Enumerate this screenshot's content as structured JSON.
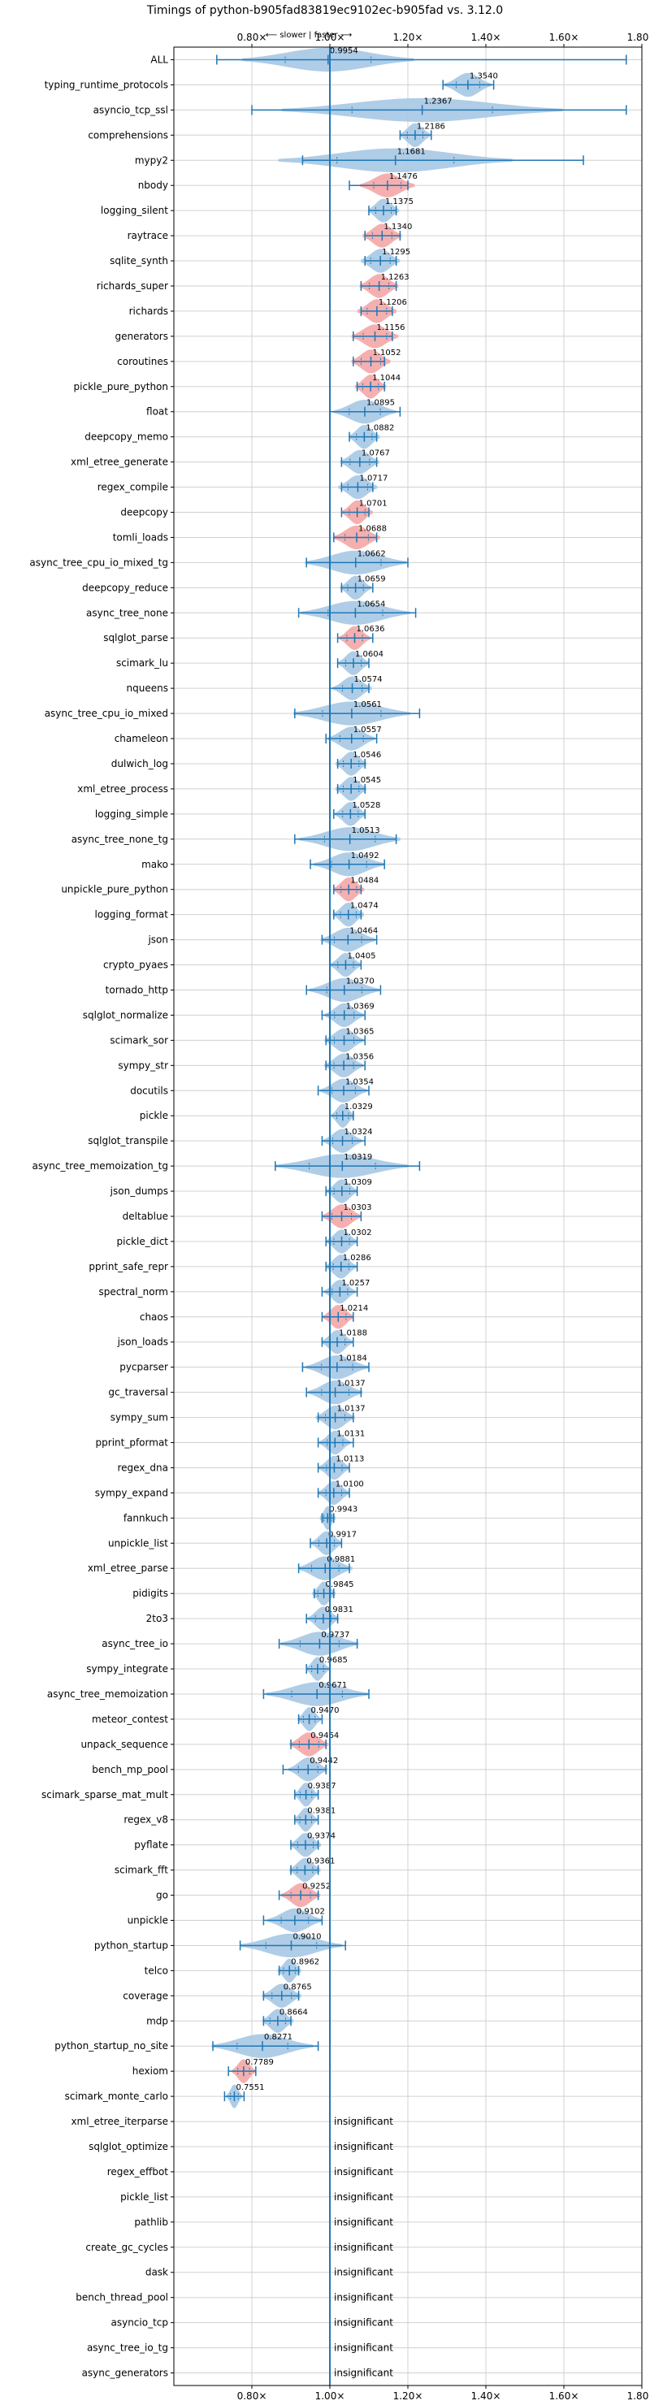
{
  "chart_data": {
    "type": "violin",
    "title": "Timings of python-b905fad83819ec9102ec-b905fad vs. 3.12.0",
    "subtitle": "⟵ slower | faster ⟶",
    "xlim": [
      0.6,
      1.8
    ],
    "xticks": [
      0.8,
      1.0,
      1.2,
      1.4,
      1.6,
      1.8
    ],
    "xtick_labels": [
      "0.80×",
      "1.00×",
      "1.20×",
      "1.40×",
      "1.60×",
      "1.80×"
    ],
    "reference_line": 1.0,
    "grid": true,
    "colors": {
      "default": "#1f77b4",
      "violin": "#a6c8e4",
      "slower": "#f4a6a6"
    },
    "insignificant_label": "insignificant",
    "benchmarks": [
      {
        "name": "ALL",
        "value": 0.9954,
        "label": "0.9954",
        "lo": 0.71,
        "hi": 1.76,
        "half": 0.22,
        "color": "default"
      },
      {
        "name": "typing_runtime_protocols",
        "value": 1.354,
        "label": "1.3540",
        "lo": 1.29,
        "hi": 1.42,
        "half": 0.06,
        "color": "default"
      },
      {
        "name": "asyncio_tcp_ssl",
        "value": 1.2367,
        "label": "1.2367",
        "lo": 0.8,
        "hi": 1.76,
        "half": 0.36,
        "color": "default"
      },
      {
        "name": "comprehensions",
        "value": 1.2186,
        "label": "1.2186",
        "lo": 1.18,
        "hi": 1.26,
        "half": 0.04,
        "color": "default"
      },
      {
        "name": "mypy2",
        "value": 1.1681,
        "label": "1.1681",
        "lo": 0.93,
        "hi": 1.65,
        "half": 0.3,
        "color": "default"
      },
      {
        "name": "nbody",
        "value": 1.1476,
        "label": "1.1476",
        "lo": 1.05,
        "hi": 1.2,
        "half": 0.07,
        "color": "slower"
      },
      {
        "name": "logging_silent",
        "value": 1.1375,
        "label": "1.1375",
        "lo": 1.1,
        "hi": 1.17,
        "half": 0.04,
        "color": "default"
      },
      {
        "name": "raytrace",
        "value": 1.134,
        "label": "1.1340",
        "lo": 1.09,
        "hi": 1.18,
        "half": 0.05,
        "color": "slower"
      },
      {
        "name": "sqlite_synth",
        "value": 1.1295,
        "label": "1.1295",
        "lo": 1.09,
        "hi": 1.17,
        "half": 0.05,
        "color": "default"
      },
      {
        "name": "richards_super",
        "value": 1.1263,
        "label": "1.1263",
        "lo": 1.08,
        "hi": 1.17,
        "half": 0.05,
        "color": "slower"
      },
      {
        "name": "richards",
        "value": 1.1206,
        "label": "1.1206",
        "lo": 1.08,
        "hi": 1.16,
        "half": 0.05,
        "color": "slower"
      },
      {
        "name": "generators",
        "value": 1.1156,
        "label": "1.1156",
        "lo": 1.06,
        "hi": 1.16,
        "half": 0.06,
        "color": "slower"
      },
      {
        "name": "coroutines",
        "value": 1.1052,
        "label": "1.1052",
        "lo": 1.06,
        "hi": 1.14,
        "half": 0.05,
        "color": "slower"
      },
      {
        "name": "pickle_pure_python",
        "value": 1.1044,
        "label": "1.1044",
        "lo": 1.07,
        "hi": 1.14,
        "half": 0.04,
        "color": "slower"
      },
      {
        "name": "float",
        "value": 1.0895,
        "label": "1.0895",
        "lo": 1.0,
        "hi": 1.18,
        "half": 0.08,
        "color": "default"
      },
      {
        "name": "deepcopy_memo",
        "value": 1.0882,
        "label": "1.0882",
        "lo": 1.05,
        "hi": 1.12,
        "half": 0.04,
        "color": "default"
      },
      {
        "name": "xml_etree_generate",
        "value": 1.0767,
        "label": "1.0767",
        "lo": 1.03,
        "hi": 1.12,
        "half": 0.05,
        "color": "default"
      },
      {
        "name": "regex_compile",
        "value": 1.0717,
        "label": "1.0717",
        "lo": 1.03,
        "hi": 1.11,
        "half": 0.05,
        "color": "default"
      },
      {
        "name": "deepcopy",
        "value": 1.0701,
        "label": "1.0701",
        "lo": 1.03,
        "hi": 1.1,
        "half": 0.04,
        "color": "slower"
      },
      {
        "name": "tomli_loads",
        "value": 1.0688,
        "label": "1.0688",
        "lo": 1.01,
        "hi": 1.12,
        "half": 0.06,
        "color": "slower"
      },
      {
        "name": "async_tree_cpu_io_mixed_tg",
        "value": 1.0662,
        "label": "1.0662",
        "lo": 0.94,
        "hi": 1.2,
        "half": 0.13,
        "color": "default"
      },
      {
        "name": "deepcopy_reduce",
        "value": 1.0659,
        "label": "1.0659",
        "lo": 1.03,
        "hi": 1.11,
        "half": 0.04,
        "color": "default"
      },
      {
        "name": "async_tree_none",
        "value": 1.0654,
        "label": "1.0654",
        "lo": 0.92,
        "hi": 1.22,
        "half": 0.14,
        "color": "default"
      },
      {
        "name": "sqlglot_parse",
        "value": 1.0636,
        "label": "1.0636",
        "lo": 1.02,
        "hi": 1.11,
        "half": 0.04,
        "color": "slower"
      },
      {
        "name": "scimark_lu",
        "value": 1.0604,
        "label": "1.0604",
        "lo": 1.02,
        "hi": 1.1,
        "half": 0.04,
        "color": "default"
      },
      {
        "name": "nqueens",
        "value": 1.0574,
        "label": "1.0574",
        "lo": 1.0,
        "hi": 1.1,
        "half": 0.05,
        "color": "default"
      },
      {
        "name": "async_tree_cpu_io_mixed",
        "value": 1.0561,
        "label": "1.0561",
        "lo": 0.91,
        "hi": 1.23,
        "half": 0.15,
        "color": "default"
      },
      {
        "name": "chameleon",
        "value": 1.0557,
        "label": "1.0557",
        "lo": 0.99,
        "hi": 1.12,
        "half": 0.06,
        "color": "default"
      },
      {
        "name": "dulwich_log",
        "value": 1.0546,
        "label": "1.0546",
        "lo": 1.02,
        "hi": 1.09,
        "half": 0.04,
        "color": "default"
      },
      {
        "name": "xml_etree_process",
        "value": 1.0545,
        "label": "1.0545",
        "lo": 1.02,
        "hi": 1.09,
        "half": 0.04,
        "color": "default"
      },
      {
        "name": "logging_simple",
        "value": 1.0528,
        "label": "1.0528",
        "lo": 1.01,
        "hi": 1.09,
        "half": 0.04,
        "color": "default"
      },
      {
        "name": "async_tree_none_tg",
        "value": 1.0513,
        "label": "1.0513",
        "lo": 0.91,
        "hi": 1.17,
        "half": 0.13,
        "color": "default"
      },
      {
        "name": "mako",
        "value": 1.0492,
        "label": "1.0492",
        "lo": 0.95,
        "hi": 1.14,
        "half": 0.09,
        "color": "default"
      },
      {
        "name": "unpickle_pure_python",
        "value": 1.0484,
        "label": "1.0484",
        "lo": 1.01,
        "hi": 1.08,
        "half": 0.04,
        "color": "slower"
      },
      {
        "name": "logging_format",
        "value": 1.0474,
        "label": "1.0474",
        "lo": 1.01,
        "hi": 1.08,
        "half": 0.04,
        "color": "default"
      },
      {
        "name": "json",
        "value": 1.0464,
        "label": "1.0464",
        "lo": 0.98,
        "hi": 1.12,
        "half": 0.07,
        "color": "default"
      },
      {
        "name": "crypto_pyaes",
        "value": 1.0405,
        "label": "1.0405",
        "lo": 1.0,
        "hi": 1.08,
        "half": 0.04,
        "color": "default"
      },
      {
        "name": "tornado_http",
        "value": 1.037,
        "label": "1.0370",
        "lo": 0.94,
        "hi": 1.13,
        "half": 0.09,
        "color": "default"
      },
      {
        "name": "sqlglot_normalize",
        "value": 1.0369,
        "label": "1.0369",
        "lo": 0.98,
        "hi": 1.09,
        "half": 0.05,
        "color": "default"
      },
      {
        "name": "scimark_sor",
        "value": 1.0365,
        "label": "1.0365",
        "lo": 0.99,
        "hi": 1.09,
        "half": 0.05,
        "color": "default"
      },
      {
        "name": "sympy_str",
        "value": 1.0356,
        "label": "1.0356",
        "lo": 0.99,
        "hi": 1.09,
        "half": 0.05,
        "color": "default"
      },
      {
        "name": "docutils",
        "value": 1.0354,
        "label": "1.0354",
        "lo": 0.97,
        "hi": 1.1,
        "half": 0.06,
        "color": "default"
      },
      {
        "name": "pickle",
        "value": 1.0329,
        "label": "1.0329",
        "lo": 1.0,
        "hi": 1.06,
        "half": 0.03,
        "color": "default"
      },
      {
        "name": "sqlglot_transpile",
        "value": 1.0324,
        "label": "1.0324",
        "lo": 0.98,
        "hi": 1.09,
        "half": 0.05,
        "color": "default"
      },
      {
        "name": "async_tree_memoization_tg",
        "value": 1.0319,
        "label": "1.0319",
        "lo": 0.86,
        "hi": 1.23,
        "half": 0.17,
        "color": "default"
      },
      {
        "name": "json_dumps",
        "value": 1.0309,
        "label": "1.0309",
        "lo": 0.99,
        "hi": 1.07,
        "half": 0.04,
        "color": "default"
      },
      {
        "name": "deltablue",
        "value": 1.0303,
        "label": "1.0303",
        "lo": 0.98,
        "hi": 1.08,
        "half": 0.05,
        "color": "slower"
      },
      {
        "name": "pickle_dict",
        "value": 1.0302,
        "label": "1.0302",
        "lo": 0.99,
        "hi": 1.07,
        "half": 0.04,
        "color": "default"
      },
      {
        "name": "pprint_safe_repr",
        "value": 1.0286,
        "label": "1.0286",
        "lo": 0.99,
        "hi": 1.07,
        "half": 0.04,
        "color": "default"
      },
      {
        "name": "spectral_norm",
        "value": 1.0257,
        "label": "1.0257",
        "lo": 0.98,
        "hi": 1.07,
        "half": 0.04,
        "color": "default"
      },
      {
        "name": "chaos",
        "value": 1.0214,
        "label": "1.0214",
        "lo": 0.98,
        "hi": 1.06,
        "half": 0.04,
        "color": "slower"
      },
      {
        "name": "json_loads",
        "value": 1.0188,
        "label": "1.0188",
        "lo": 0.98,
        "hi": 1.06,
        "half": 0.04,
        "color": "default"
      },
      {
        "name": "pycparser",
        "value": 1.0184,
        "label": "1.0184",
        "lo": 0.93,
        "hi": 1.1,
        "half": 0.08,
        "color": "default"
      },
      {
        "name": "gc_traversal",
        "value": 1.0137,
        "label": "1.0137",
        "lo": 0.94,
        "hi": 1.08,
        "half": 0.07,
        "color": "default"
      },
      {
        "name": "sympy_sum",
        "value": 1.0137,
        "label": "1.0137",
        "lo": 0.97,
        "hi": 1.06,
        "half": 0.05,
        "color": "default"
      },
      {
        "name": "pprint_pformat",
        "value": 1.0131,
        "label": "1.0131",
        "lo": 0.97,
        "hi": 1.06,
        "half": 0.04,
        "color": "default"
      },
      {
        "name": "regex_dna",
        "value": 1.0113,
        "label": "1.0113",
        "lo": 0.97,
        "hi": 1.05,
        "half": 0.04,
        "color": "default"
      },
      {
        "name": "sympy_expand",
        "value": 1.01,
        "label": "1.0100",
        "lo": 0.97,
        "hi": 1.05,
        "half": 0.04,
        "color": "default"
      },
      {
        "name": "fannkuch",
        "value": 0.9943,
        "label": "0.9943",
        "lo": 0.98,
        "hi": 1.01,
        "half": 0.02,
        "color": "default"
      },
      {
        "name": "unpickle_list",
        "value": 0.9917,
        "label": "0.9917",
        "lo": 0.95,
        "hi": 1.03,
        "half": 0.04,
        "color": "default"
      },
      {
        "name": "xml_etree_parse",
        "value": 0.9881,
        "label": "0.9881",
        "lo": 0.92,
        "hi": 1.05,
        "half": 0.07,
        "color": "default"
      },
      {
        "name": "pidigits",
        "value": 0.9845,
        "label": "0.9845",
        "lo": 0.96,
        "hi": 1.01,
        "half": 0.03,
        "color": "default"
      },
      {
        "name": "2to3",
        "value": 0.9831,
        "label": "0.9831",
        "lo": 0.94,
        "hi": 1.02,
        "half": 0.04,
        "color": "default"
      },
      {
        "name": "async_tree_io",
        "value": 0.9737,
        "label": "0.9737",
        "lo": 0.87,
        "hi": 1.07,
        "half": 0.1,
        "color": "default"
      },
      {
        "name": "sympy_integrate",
        "value": 0.9685,
        "label": "0.9685",
        "lo": 0.94,
        "hi": 1.0,
        "half": 0.03,
        "color": "default"
      },
      {
        "name": "async_tree_memoization",
        "value": 0.9671,
        "label": "0.9671",
        "lo": 0.83,
        "hi": 1.1,
        "half": 0.13,
        "color": "default"
      },
      {
        "name": "meteor_contest",
        "value": 0.947,
        "label": "0.9470",
        "lo": 0.92,
        "hi": 0.98,
        "half": 0.03,
        "color": "default"
      },
      {
        "name": "unpack_sequence",
        "value": 0.9464,
        "label": "0.9464",
        "lo": 0.9,
        "hi": 0.99,
        "half": 0.05,
        "color": "slower"
      },
      {
        "name": "bench_mp_pool",
        "value": 0.9442,
        "label": "0.9442",
        "lo": 0.88,
        "hi": 0.99,
        "half": 0.05,
        "color": "default"
      },
      {
        "name": "scimark_sparse_mat_mult",
        "value": 0.9387,
        "label": "0.9387",
        "lo": 0.91,
        "hi": 0.97,
        "half": 0.03,
        "color": "default"
      },
      {
        "name": "regex_v8",
        "value": 0.9381,
        "label": "0.9381",
        "lo": 0.91,
        "hi": 0.97,
        "half": 0.03,
        "color": "default"
      },
      {
        "name": "pyflate",
        "value": 0.9374,
        "label": "0.9374",
        "lo": 0.9,
        "hi": 0.97,
        "half": 0.04,
        "color": "default"
      },
      {
        "name": "scimark_fft",
        "value": 0.9361,
        "label": "0.9361",
        "lo": 0.9,
        "hi": 0.97,
        "half": 0.04,
        "color": "default"
      },
      {
        "name": "go",
        "value": 0.9252,
        "label": "0.9252",
        "lo": 0.87,
        "hi": 0.97,
        "half": 0.05,
        "color": "slower"
      },
      {
        "name": "unpickle",
        "value": 0.9102,
        "label": "0.9102",
        "lo": 0.83,
        "hi": 0.98,
        "half": 0.07,
        "color": "default"
      },
      {
        "name": "python_startup",
        "value": 0.901,
        "label": "0.9010",
        "lo": 0.77,
        "hi": 1.04,
        "half": 0.13,
        "color": "default"
      },
      {
        "name": "telco",
        "value": 0.8962,
        "label": "0.8962",
        "lo": 0.87,
        "hi": 0.92,
        "half": 0.03,
        "color": "default"
      },
      {
        "name": "coverage",
        "value": 0.8765,
        "label": "0.8765",
        "lo": 0.83,
        "hi": 0.92,
        "half": 0.05,
        "color": "default"
      },
      {
        "name": "mdp",
        "value": 0.8664,
        "label": "0.8664",
        "lo": 0.83,
        "hi": 0.9,
        "half": 0.04,
        "color": "default"
      },
      {
        "name": "python_startup_no_site",
        "value": 0.8271,
        "label": "0.8271",
        "lo": 0.7,
        "hi": 0.97,
        "half": 0.13,
        "color": "default"
      },
      {
        "name": "hexiom",
        "value": 0.7789,
        "label": "0.7789",
        "lo": 0.74,
        "hi": 0.81,
        "half": 0.03,
        "color": "slower"
      },
      {
        "name": "scimark_monte_carlo",
        "value": 0.7551,
        "label": "0.7551",
        "lo": 0.73,
        "hi": 0.78,
        "half": 0.02,
        "color": "default"
      },
      {
        "name": "xml_etree_iterparse",
        "value": null,
        "label": "insignificant"
      },
      {
        "name": "sqlglot_optimize",
        "value": null,
        "label": "insignificant"
      },
      {
        "name": "regex_effbot",
        "value": null,
        "label": "insignificant"
      },
      {
        "name": "pickle_list",
        "value": null,
        "label": "insignificant"
      },
      {
        "name": "pathlib",
        "value": null,
        "label": "insignificant"
      },
      {
        "name": "create_gc_cycles",
        "value": null,
        "label": "insignificant"
      },
      {
        "name": "dask",
        "value": null,
        "label": "insignificant"
      },
      {
        "name": "bench_thread_pool",
        "value": null,
        "label": "insignificant"
      },
      {
        "name": "asyncio_tcp",
        "value": null,
        "label": "insignificant"
      },
      {
        "name": "async_tree_io_tg",
        "value": null,
        "label": "insignificant"
      },
      {
        "name": "async_generators",
        "value": null,
        "label": "insignificant"
      }
    ]
  }
}
